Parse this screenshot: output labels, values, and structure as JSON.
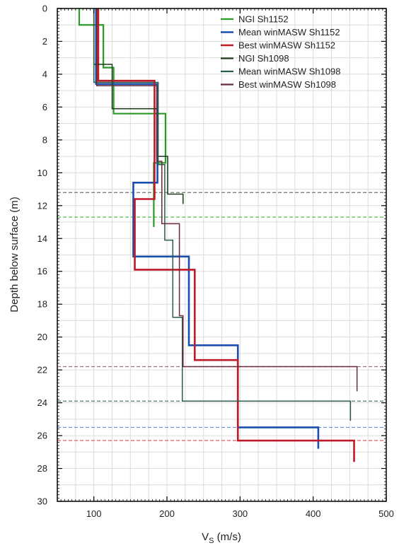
{
  "chart_data": {
    "type": "line",
    "title": "",
    "xlabel": {
      "main": "V",
      "sub": "S",
      "unit": " (m/s)"
    },
    "ylabel": "Depth below surface (m)",
    "xlim": [
      50,
      500
    ],
    "ylim": [
      30,
      0
    ],
    "y_inverted": true,
    "grid": true,
    "legend_position": "top-right",
    "xticks": [
      100,
      200,
      300,
      400,
      500
    ],
    "xtick_labels": [
      "100",
      "200",
      "300",
      "400",
      "500"
    ],
    "yticks": [
      0,
      2,
      4,
      6,
      8,
      10,
      12,
      14,
      16,
      18,
      20,
      22,
      24,
      26,
      28,
      30
    ],
    "ytick_labels": [
      "0",
      "2",
      "4",
      "6",
      "8",
      "10",
      "12",
      "14",
      "16",
      "18",
      "20",
      "22",
      "24",
      "26",
      "28",
      "30"
    ],
    "series": [
      {
        "name": "NGI Sh1152",
        "color": "#2a9a2a",
        "width": 2.2,
        "points": [
          [
            80,
            0
          ],
          [
            80,
            1.0
          ],
          [
            113,
            1.0
          ],
          [
            113,
            3.6
          ],
          [
            127,
            3.6
          ],
          [
            127,
            6.4
          ],
          [
            198,
            6.4
          ],
          [
            198,
            9.4
          ],
          [
            182,
            9.4
          ],
          [
            182,
            13.3
          ]
        ]
      },
      {
        "name": "Mean winMASW Sh1152",
        "color": "#1a4fb0",
        "width": 2.6,
        "points": [
          [
            103,
            0
          ],
          [
            103,
            4.6
          ],
          [
            187,
            4.6
          ],
          [
            187,
            10.6
          ],
          [
            154,
            10.6
          ],
          [
            154,
            15.1
          ],
          [
            230,
            15.1
          ],
          [
            230,
            20.5
          ],
          [
            297,
            20.5
          ],
          [
            297,
            25.5
          ],
          [
            407,
            25.5
          ],
          [
            407,
            26.8
          ]
        ]
      },
      {
        "name": "Best winMASW Sh1152",
        "color": "#c01a2a",
        "width": 2.6,
        "points": [
          [
            106,
            0
          ],
          [
            106,
            4.4
          ],
          [
            183,
            4.4
          ],
          [
            183,
            11.6
          ],
          [
            156,
            11.6
          ],
          [
            156,
            15.9
          ],
          [
            238,
            15.9
          ],
          [
            238,
            21.4
          ],
          [
            297,
            21.4
          ],
          [
            297,
            26.3
          ],
          [
            456,
            26.3
          ],
          [
            456,
            27.6
          ]
        ]
      },
      {
        "name": "NGI Sh1098",
        "color": "#1a3a1a",
        "width": 1.5,
        "points": [
          [
            100,
            0
          ],
          [
            100,
            3.4
          ],
          [
            125,
            3.4
          ],
          [
            125,
            6.1
          ],
          [
            186,
            6.1
          ],
          [
            186,
            9.0
          ],
          [
            201,
            9.0
          ],
          [
            201,
            11.3
          ],
          [
            222,
            11.3
          ],
          [
            222,
            11.9
          ]
        ]
      },
      {
        "name": "Mean winMASW Sh1098",
        "color": "#2d5a4a",
        "width": 1.5,
        "points": [
          [
            100,
            0
          ],
          [
            100,
            4.5
          ],
          [
            188,
            4.5
          ],
          [
            188,
            9.5
          ],
          [
            197,
            9.5
          ],
          [
            197,
            14.1
          ],
          [
            208,
            14.1
          ],
          [
            208,
            18.8
          ],
          [
            221,
            18.8
          ],
          [
            221,
            23.9
          ],
          [
            451,
            23.9
          ],
          [
            451,
            25.1
          ]
        ]
      },
      {
        "name": "Best winMASW Sh1098",
        "color": "#6a2a3a",
        "width": 1.5,
        "points": [
          [
            104,
            0
          ],
          [
            104,
            4.7
          ],
          [
            186,
            4.7
          ],
          [
            186,
            9.3
          ],
          [
            193,
            9.3
          ],
          [
            193,
            13.1
          ],
          [
            217,
            13.1
          ],
          [
            217,
            18.7
          ],
          [
            222,
            18.7
          ],
          [
            222,
            21.8
          ],
          [
            460,
            21.8
          ],
          [
            460,
            23.3
          ]
        ]
      }
    ],
    "reference_lines": [
      {
        "y": 11.2,
        "color": "#707070"
      },
      {
        "y": 12.7,
        "color": "#46b046"
      },
      {
        "y": 21.8,
        "color": "#a07080"
      },
      {
        "y": 23.9,
        "color": "#4a7a6a"
      },
      {
        "y": 25.5,
        "color": "#6a8fd6"
      },
      {
        "y": 26.3,
        "color": "#e05a68"
      }
    ]
  }
}
